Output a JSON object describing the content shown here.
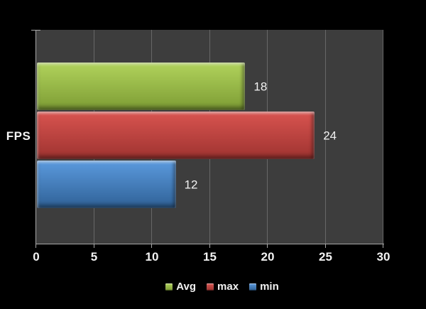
{
  "chart_data": {
    "type": "bar",
    "orientation": "horizontal",
    "title": "",
    "categories": [
      "FPS"
    ],
    "series": [
      {
        "name": "Avg",
        "value": 18,
        "color_top": "#b1d35c",
        "color_bottom": "#7d9c34"
      },
      {
        "name": "max",
        "value": 24,
        "color_top": "#d95450",
        "color_bottom": "#9e3330"
      },
      {
        "name": "min",
        "value": 12,
        "color_top": "#5b9ade",
        "color_bottom": "#2f6196"
      }
    ],
    "x_ticks": [
      0,
      5,
      10,
      15,
      20,
      25,
      30
    ],
    "xlim": [
      0,
      30
    ],
    "grid": true,
    "legend_position": "bottom",
    "value_labels_shown": true
  },
  "colors": {
    "page_background": "#000000",
    "plot_background": "#3d3d3d",
    "gridline": "#757575",
    "axis_line": "#a8a8a8",
    "text": "#f2f2f2"
  }
}
